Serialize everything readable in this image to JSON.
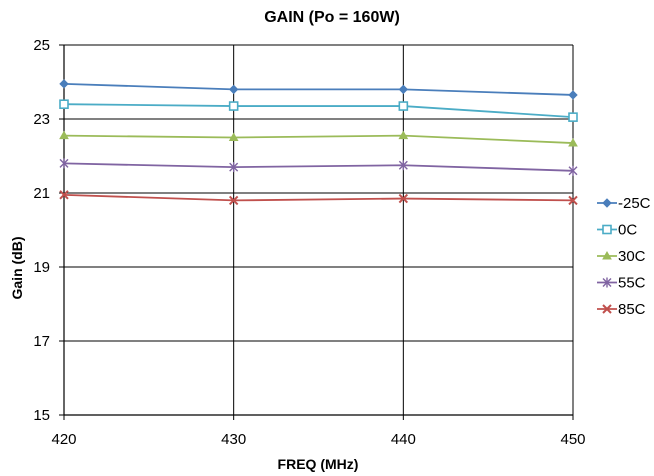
{
  "chart_data": {
    "type": "line",
    "title": "GAIN (Po = 160W)",
    "xlabel": "FREQ (MHz)",
    "ylabel": "Gain (dB)",
    "x": [
      420,
      430,
      440,
      450
    ],
    "xlim": [
      420,
      450
    ],
    "ylim": [
      15,
      25
    ],
    "xticks": [
      "420",
      "430",
      "440",
      "450"
    ],
    "yticks": [
      "15",
      "17",
      "19",
      "21",
      "23",
      "25"
    ],
    "grid": true,
    "legend_position": "right",
    "series": [
      {
        "name": "-25C",
        "values": [
          23.95,
          23.8,
          23.8,
          23.65
        ],
        "color": "#4a7ebb",
        "marker": "diamond"
      },
      {
        "name": "0C",
        "values": [
          23.4,
          23.35,
          23.35,
          23.05
        ],
        "color": "#4bacc6",
        "marker": "square"
      },
      {
        "name": "30C",
        "values": [
          22.55,
          22.5,
          22.55,
          22.35
        ],
        "color": "#9bbb59",
        "marker": "triangle"
      },
      {
        "name": "55C",
        "values": [
          21.8,
          21.7,
          21.75,
          21.6
        ],
        "color": "#8064a2",
        "marker": "star"
      },
      {
        "name": "85C",
        "values": [
          20.95,
          20.8,
          20.85,
          20.8
        ],
        "color": "#c0504d",
        "marker": "x"
      }
    ]
  }
}
